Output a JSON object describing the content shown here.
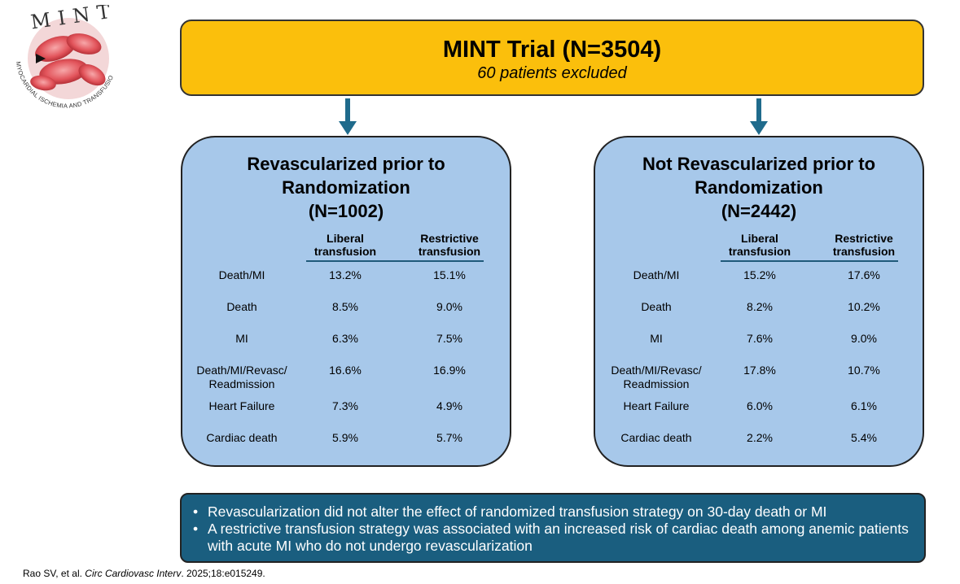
{
  "logo": {
    "word": "MINT",
    "ring_text": "MYOCARDIAL ISCHEMIA AND TRANSFUSION"
  },
  "trial": {
    "title": "MINT Trial (N=3504)",
    "subtitle": "60 patients excluded"
  },
  "groups": [
    {
      "title_lines": [
        "Revascularized prior to",
        "Randomization",
        "(N=1002)"
      ],
      "columns": [
        [
          "Liberal",
          "transfusion"
        ],
        [
          "Restrictive",
          "transfusion"
        ]
      ],
      "rows": [
        {
          "label": [
            "Death/MI"
          ],
          "liberal": "13.2%",
          "restrictive": "15.1%"
        },
        {
          "label": [
            "Death"
          ],
          "liberal": "8.5%",
          "restrictive": "9.0%"
        },
        {
          "label": [
            "MI"
          ],
          "liberal": "6.3%",
          "restrictive": "7.5%"
        },
        {
          "label": [
            "Death/MI/Revasc/",
            "Readmission"
          ],
          "liberal": "16.6%",
          "restrictive": "16.9%"
        },
        {
          "label": [
            "Heart Failure"
          ],
          "liberal": "7.3%",
          "restrictive": "4.9%"
        },
        {
          "label": [
            "Cardiac death"
          ],
          "liberal": "5.9%",
          "restrictive": "5.7%"
        }
      ]
    },
    {
      "title_lines": [
        "Not Revascularized prior to",
        "Randomization",
        "(N=2442)"
      ],
      "columns": [
        [
          "Liberal",
          "transfusion"
        ],
        [
          "Restrictive",
          "transfusion"
        ]
      ],
      "rows": [
        {
          "label": [
            "Death/MI"
          ],
          "liberal": "15.2%",
          "restrictive": "17.6%"
        },
        {
          "label": [
            "Death"
          ],
          "liberal": "8.2%",
          "restrictive": "10.2%"
        },
        {
          "label": [
            "MI"
          ],
          "liberal": "7.6%",
          "restrictive": "9.0%"
        },
        {
          "label": [
            "Death/MI/Revasc/",
            "Readmission"
          ],
          "liberal": "17.8%",
          "restrictive": "10.7%"
        },
        {
          "label": [
            "Heart Failure"
          ],
          "liberal": "6.0%",
          "restrictive": "6.1%"
        },
        {
          "label": [
            "Cardiac death"
          ],
          "liberal": "2.2%",
          "restrictive": "5.4%"
        }
      ]
    }
  ],
  "summary": {
    "bullets": [
      "Revascularization did not alter the effect of randomized transfusion strategy on 30-day death or MI",
      "A restrictive transfusion strategy was associated with an increased risk of cardiac death among anemic patients with acute MI who do not undergo revascularization"
    ]
  },
  "citation": {
    "authors": "Rao SV, et al. ",
    "journal": "Circ Cardiovasc Interv",
    "details": ". 2025;18:e015249."
  },
  "colors": {
    "top_box": "#fbbf0c",
    "panel": "#a7c8ea",
    "summary": "#1a5e7f",
    "arrow": "#1f6b8c"
  }
}
